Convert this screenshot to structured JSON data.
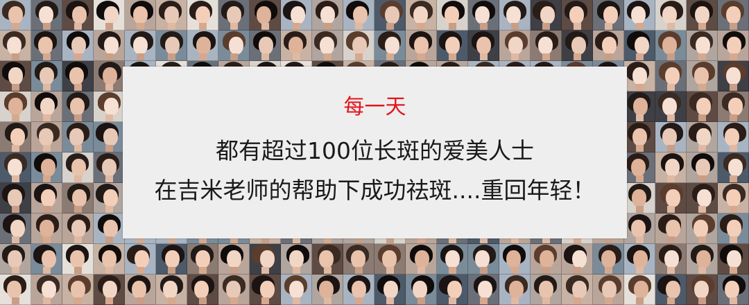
{
  "banner": {
    "line1": "每一天",
    "line2": "都有超过100位长斑的爱美人士",
    "line3": "在吉米老师的帮助下成功祛斑....重回年轻！"
  },
  "colors": {
    "highlight": "#e3141c",
    "body_text": "#1a1a1a",
    "panel_background": "#eeeeee"
  },
  "background": {
    "description_icon": "portrait-photo-mosaic"
  }
}
